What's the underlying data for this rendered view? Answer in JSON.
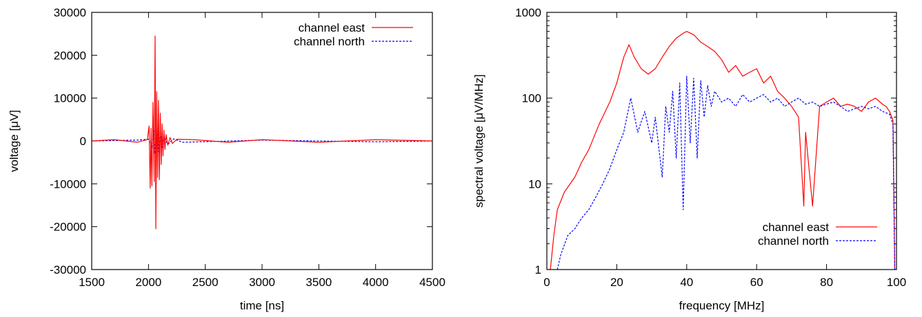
{
  "chart_data": [
    {
      "type": "line",
      "title": "",
      "xlabel": "time [ns]",
      "ylabel": "voltage [μV]",
      "xlim": [
        1500,
        4500
      ],
      "ylim": [
        -30000,
        30000
      ],
      "xticks": [
        1500,
        2000,
        2500,
        3000,
        3500,
        4000,
        4500
      ],
      "yticks": [
        -30000,
        -20000,
        -10000,
        0,
        10000,
        20000,
        30000
      ],
      "xtick_labels": [
        "1500",
        "2000",
        "2500",
        "3000",
        "3500",
        "4000",
        "4500"
      ],
      "ytick_labels": [
        "-30000",
        "-20000",
        "-10000",
        "0",
        "10000",
        "20000",
        "30000"
      ],
      "grid": false,
      "legend_position": "top-right",
      "series": [
        {
          "name": "channel east",
          "color": "#ff0000",
          "dash": "solid",
          "x": [
            1500,
            1700,
            1900,
            1990,
            2005,
            2015,
            2022,
            2030,
            2040,
            2050,
            2058,
            2065,
            2072,
            2080,
            2088,
            2096,
            2104,
            2112,
            2120,
            2128,
            2136,
            2145,
            2155,
            2170,
            2190,
            2210,
            2250,
            2400,
            2700,
            3000,
            3500,
            4000,
            4500
          ],
          "y": [
            0,
            300,
            -300,
            300,
            3500,
            -11000,
            3000,
            -10500,
            9000,
            -9500,
            24500,
            -20500,
            11500,
            -8500,
            9500,
            -9000,
            6500,
            -5500,
            4000,
            -3500,
            2500,
            -2000,
            1500,
            -1000,
            800,
            -600,
            400,
            300,
            -300,
            300,
            -300,
            300,
            0
          ]
        },
        {
          "name": "channel north",
          "color": "#0000ff",
          "dash": "dashed",
          "x": [
            1500,
            1900,
            2000,
            2030,
            2045,
            2060,
            2075,
            2090,
            2105,
            2120,
            2140,
            2170,
            2220,
            2300,
            3000,
            4000,
            4500
          ],
          "y": [
            0,
            200,
            400,
            -1500,
            2500,
            -3000,
            3000,
            -2500,
            2000,
            -1500,
            1000,
            -800,
            500,
            -300,
            200,
            -200,
            0
          ]
        }
      ]
    },
    {
      "type": "line",
      "title": "",
      "xlabel": "frequency [MHz]",
      "ylabel": "spectral voltage [μV/MHz]",
      "xlim": [
        0,
        100
      ],
      "ylim": [
        1,
        1000
      ],
      "yscale": "log",
      "xticks": [
        0,
        20,
        40,
        60,
        80,
        100
      ],
      "yticks": [
        1,
        10,
        100,
        1000
      ],
      "xtick_labels": [
        "0",
        "20",
        "40",
        "60",
        "80",
        "100"
      ],
      "ytick_labels": [
        "1",
        "10",
        "100",
        "1000"
      ],
      "grid": false,
      "legend_position": "bottom-right",
      "series": [
        {
          "name": "channel east",
          "color": "#ff0000",
          "dash": "solid",
          "x": [
            1,
            2,
            3,
            5,
            8,
            10,
            12,
            15,
            18,
            20,
            22,
            23.5,
            25,
            27,
            29,
            31,
            33,
            35,
            37,
            39,
            40,
            42,
            44,
            46,
            48,
            50,
            52,
            54,
            56,
            58,
            60,
            62,
            64,
            66,
            68,
            70,
            72,
            73.5,
            74,
            76,
            78,
            80,
            82,
            84,
            86,
            88,
            90,
            92,
            94,
            96,
            97,
            98,
            99,
            99.5
          ],
          "y": [
            1,
            2.5,
            5,
            8,
            12,
            18,
            25,
            50,
            90,
            150,
            300,
            420,
            300,
            220,
            190,
            220,
            300,
            400,
            500,
            570,
            600,
            550,
            450,
            400,
            350,
            280,
            200,
            240,
            180,
            200,
            220,
            150,
            180,
            120,
            100,
            80,
            60,
            5.5,
            40,
            5.5,
            80,
            90,
            100,
            80,
            85,
            80,
            70,
            90,
            100,
            85,
            80,
            70,
            55,
            1
          ]
        },
        {
          "name": "channel north",
          "color": "#0000ff",
          "dash": "dashed",
          "x": [
            3,
            4,
            6,
            8,
            10,
            12,
            14,
            16,
            18,
            20,
            22,
            24,
            26,
            28,
            30,
            31,
            33,
            34,
            35,
            36,
            37,
            38,
            39,
            40,
            41,
            42,
            43,
            44,
            45,
            46,
            47,
            48,
            50,
            52,
            54,
            56,
            58,
            60,
            62,
            64,
            66,
            68,
            70,
            72,
            74,
            76,
            78,
            80,
            82,
            84,
            86,
            88,
            90,
            92,
            94,
            96,
            98,
            99,
            99.5
          ],
          "y": [
            1,
            1.5,
            2.5,
            3,
            4,
            5,
            7,
            10,
            15,
            25,
            40,
            100,
            40,
            70,
            30,
            60,
            12,
            80,
            40,
            120,
            20,
            150,
            5,
            180,
            30,
            170,
            20,
            160,
            60,
            140,
            80,
            120,
            90,
            100,
            80,
            110,
            90,
            100,
            110,
            90,
            100,
            80,
            90,
            100,
            85,
            90,
            80,
            85,
            90,
            80,
            70,
            75,
            80,
            75,
            80,
            70,
            65,
            50,
            1
          ]
        }
      ]
    }
  ]
}
